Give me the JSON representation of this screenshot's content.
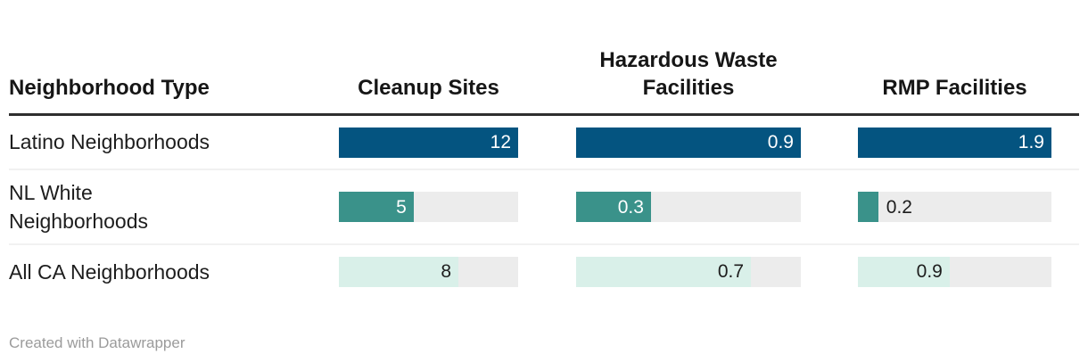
{
  "chart_data": {
    "type": "table",
    "table_style": "bar-columns",
    "row_header_label": "Neighborhood Type",
    "categories": [
      "Latino Neighborhoods",
      "NL White Neighborhoods",
      "All CA Neighborhoods"
    ],
    "series": [
      {
        "name": "Cleanup Sites",
        "values": [
          12,
          5,
          8
        ],
        "axis_max": 12
      },
      {
        "name": "Hazardous Waste Facilities",
        "values": [
          0.9,
          0.3,
          0.7
        ],
        "axis_max": 0.9
      },
      {
        "name": "RMP Facilities",
        "values": [
          1.9,
          0.2,
          0.9
        ],
        "axis_max": 1.9
      }
    ],
    "row_colors": {
      "Latino Neighborhoods": "#045480",
      "NL White Neighborhoods": "#3A928A",
      "All CA Neighborhoods": "#D9F0E9"
    },
    "bar_track_color": "#ECECEC",
    "legend_position": "none",
    "grid": false
  },
  "header": {
    "columns": [
      {
        "label": "Neighborhood Type"
      },
      {
        "label": "Cleanup Sites"
      },
      {
        "label": "Hazardous Waste Facilities"
      },
      {
        "label": "RMP Facilities"
      }
    ]
  },
  "table": {
    "rows": [
      {
        "label": "Latino Neighborhoods",
        "label_lines": [
          "Latino Neighborhoods"
        ],
        "bar_color": "#045480",
        "value_color_inside": "#FFFFFF",
        "cells": [
          {
            "display": "12",
            "fill_pct": 100,
            "label_inside": true
          },
          {
            "display": "0.9",
            "fill_pct": 100,
            "label_inside": true
          },
          {
            "display": "1.9",
            "fill_pct": 100,
            "label_inside": true
          }
        ]
      },
      {
        "label": "NL White Neighborhoods",
        "label_lines": [
          "NL White",
          "Neighborhoods"
        ],
        "bar_color": "#3A928A",
        "value_color_inside": "#FFFFFF",
        "cells": [
          {
            "display": "5",
            "fill_pct": 41.7,
            "label_inside": true
          },
          {
            "display": "0.3",
            "fill_pct": 33.3,
            "label_inside": true
          },
          {
            "display": "0.2",
            "fill_pct": 10.5,
            "label_inside": false
          }
        ]
      },
      {
        "label": "All CA Neighborhoods",
        "label_lines": [
          "All CA Neighborhoods"
        ],
        "bar_color": "#D9F0E9",
        "value_color_inside": "#1D1D1D",
        "cells": [
          {
            "display": "8",
            "fill_pct": 66.7,
            "label_inside": true
          },
          {
            "display": "0.7",
            "fill_pct": 77.8,
            "label_inside": true
          },
          {
            "display": "0.9",
            "fill_pct": 47.4,
            "label_inside": true
          }
        ]
      }
    ]
  },
  "footer": {
    "credit": "Created with Datawrapper"
  },
  "colors": {
    "track": "#ECECEC",
    "header_rule": "#2E2E2E",
    "row_divider": "#F1F1F1",
    "text": "#1D1D1D",
    "outside_value_text": "#1D1D1D",
    "footer_text": "#9B9B9B"
  }
}
